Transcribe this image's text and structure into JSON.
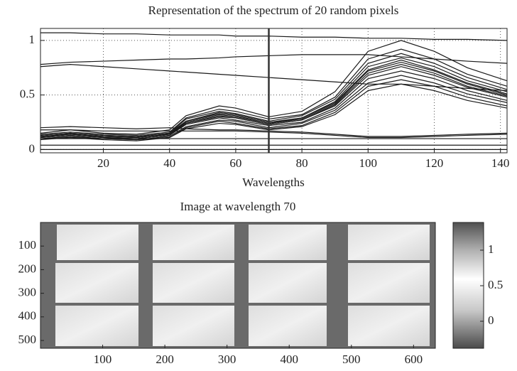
{
  "chart_data": [
    {
      "type": "line",
      "title": "Representation of the spectrum of 20 random pixels",
      "x_label": "Wavelengths",
      "x": [
        1,
        10,
        20,
        30,
        40,
        45,
        55,
        60,
        70,
        80,
        90,
        100,
        110,
        120,
        130,
        142
      ],
      "xlim": [
        1,
        142
      ],
      "ylim": [
        -0.03,
        1.11
      ],
      "xticks": [
        20,
        40,
        60,
        80,
        100,
        120,
        140
      ],
      "yticks": [
        0,
        0.5,
        1
      ],
      "grid": true,
      "color": "#1a1a1a",
      "cursor_x": 70,
      "series": [
        {
          "values": [
            1.07,
            1.07,
            1.06,
            1.06,
            1.05,
            1.05,
            1.05,
            1.04,
            1.04,
            1.03,
            1.03,
            1.02,
            1.02,
            1.01,
            1.01,
            1.0
          ]
        },
        {
          "values": [
            0.76,
            0.78,
            0.76,
            0.74,
            0.72,
            0.71,
            0.69,
            0.68,
            0.66,
            0.64,
            0.62,
            0.6,
            0.6,
            0.58,
            0.56,
            0.54
          ]
        },
        {
          "values": [
            0.78,
            0.8,
            0.81,
            0.82,
            0.83,
            0.83,
            0.84,
            0.85,
            0.86,
            0.87,
            0.87,
            0.87,
            0.85,
            0.83,
            0.81,
            0.79
          ]
        },
        {
          "values": [
            0.09,
            0.11,
            0.09,
            0.08,
            0.11,
            0.19,
            0.24,
            0.23,
            0.18,
            0.21,
            0.32,
            0.54,
            0.6,
            0.54,
            0.45,
            0.38
          ]
        },
        {
          "values": [
            0.1,
            0.11,
            0.1,
            0.09,
            0.11,
            0.2,
            0.26,
            0.24,
            0.19,
            0.22,
            0.34,
            0.58,
            0.64,
            0.58,
            0.48,
            0.4
          ]
        },
        {
          "values": [
            0.1,
            0.12,
            0.1,
            0.09,
            0.12,
            0.21,
            0.27,
            0.26,
            0.2,
            0.24,
            0.36,
            0.61,
            0.68,
            0.61,
            0.51,
            0.43
          ]
        },
        {
          "values": [
            0.11,
            0.13,
            0.11,
            0.1,
            0.13,
            0.23,
            0.29,
            0.27,
            0.22,
            0.25,
            0.38,
            0.65,
            0.72,
            0.65,
            0.54,
            0.45
          ]
        },
        {
          "values": [
            0.11,
            0.13,
            0.11,
            0.1,
            0.13,
            0.24,
            0.3,
            0.29,
            0.23,
            0.27,
            0.4,
            0.68,
            0.76,
            0.68,
            0.57,
            0.48
          ]
        },
        {
          "values": [
            0.12,
            0.14,
            0.12,
            0.11,
            0.14,
            0.24,
            0.31,
            0.29,
            0.23,
            0.27,
            0.41,
            0.7,
            0.78,
            0.7,
            0.58,
            0.49
          ]
        },
        {
          "values": [
            0.12,
            0.14,
            0.12,
            0.11,
            0.14,
            0.25,
            0.32,
            0.3,
            0.24,
            0.28,
            0.42,
            0.72,
            0.8,
            0.72,
            0.6,
            0.5
          ]
        },
        {
          "values": [
            0.12,
            0.14,
            0.12,
            0.11,
            0.14,
            0.26,
            0.33,
            0.31,
            0.24,
            0.29,
            0.43,
            0.73,
            0.82,
            0.73,
            0.61,
            0.51
          ]
        },
        {
          "values": [
            0.13,
            0.15,
            0.13,
            0.12,
            0.15,
            0.26,
            0.34,
            0.32,
            0.25,
            0.29,
            0.44,
            0.76,
            0.84,
            0.76,
            0.63,
            0.53
          ]
        },
        {
          "values": [
            0.13,
            0.15,
            0.13,
            0.12,
            0.15,
            0.28,
            0.35,
            0.33,
            0.26,
            0.31,
            0.46,
            0.79,
            0.88,
            0.79,
            0.66,
            0.55
          ]
        },
        {
          "values": [
            0.14,
            0.16,
            0.14,
            0.13,
            0.16,
            0.29,
            0.37,
            0.35,
            0.28,
            0.32,
            0.48,
            0.83,
            0.92,
            0.83,
            0.69,
            0.58
          ]
        },
        {
          "values": [
            0.15,
            0.18,
            0.15,
            0.14,
            0.18,
            0.31,
            0.4,
            0.38,
            0.3,
            0.35,
            0.53,
            0.9,
            1.0,
            0.9,
            0.75,
            0.63
          ]
        },
        {
          "values": [
            0.2,
            0.21,
            0.2,
            0.19,
            0.2,
            0.19,
            0.18,
            0.18,
            0.17,
            0.16,
            0.14,
            0.12,
            0.12,
            0.13,
            0.14,
            0.15
          ]
        },
        {
          "values": [
            0.18,
            0.18,
            0.17,
            0.17,
            0.17,
            0.17,
            0.17,
            0.17,
            0.16,
            0.15,
            0.13,
            0.11,
            0.11,
            0.12,
            0.13,
            0.14
          ]
        },
        {
          "values": [
            0.1,
            0.1,
            0.1,
            0.1,
            0.1,
            0.1,
            0.1,
            0.1,
            0.1,
            0.1,
            0.1,
            0.1,
            0.1,
            0.1,
            0.1,
            0.1
          ]
        },
        {
          "values": [
            0.04,
            0.04,
            0.04,
            0.04,
            0.04,
            0.04,
            0.04,
            0.04,
            0.04,
            0.04,
            0.04,
            0.04,
            0.04,
            0.04,
            0.04,
            0.04
          ]
        },
        {
          "values": [
            0.0,
            0.0,
            0.0,
            0.0,
            0.0,
            0.0,
            0.0,
            0.0,
            0.0,
            0.0,
            0.0,
            0.0,
            0.0,
            0.0,
            0.0,
            0.0
          ]
        }
      ]
    },
    {
      "type": "image",
      "title": "Image at wavelength 70",
      "xlim": [
        0,
        635
      ],
      "ylim": [
        0,
        533
      ],
      "y_reversed": true,
      "xticks": [
        100,
        200,
        300,
        400,
        500,
        600
      ],
      "yticks": [
        100,
        200,
        300,
        400,
        500
      ],
      "colorbar": {
        "clim": [
          -0.38,
          1.39
        ],
        "ticks": [
          0,
          0.5,
          1
        ]
      }
    }
  ]
}
